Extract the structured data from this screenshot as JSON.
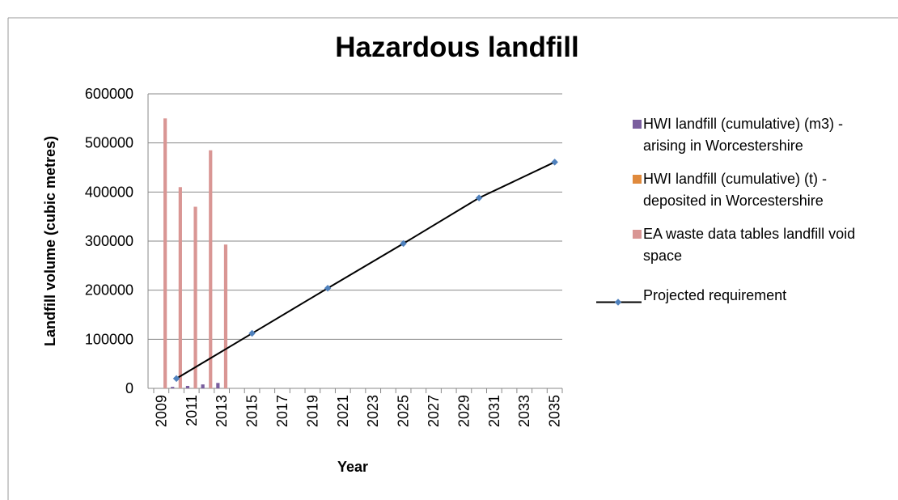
{
  "chart_data": {
    "type": "combo",
    "title": "Hazardous landfill",
    "y_label": "Landfill volume (cubic metres)",
    "x_label": "Year",
    "categories": [
      "2009",
      null,
      "2011",
      null,
      "2013",
      null,
      "2015",
      null,
      "2017",
      null,
      "2019",
      null,
      "2021",
      null,
      "2023",
      null,
      "2025",
      null,
      "2027",
      null,
      "2029",
      null,
      "2031",
      null,
      "2033",
      null,
      "2035"
    ],
    "series": [
      {
        "name": "HWI landfill (cumulative) (m3) - arising in Worcestershire",
        "type": "bar",
        "color": "#7a5e9e",
        "values": [
          null,
          3000,
          5000,
          8000,
          11000,
          null,
          null,
          null,
          null,
          null,
          null,
          null,
          null,
          null,
          null,
          null,
          null,
          null,
          null,
          null,
          null,
          null,
          null,
          null,
          null,
          null,
          null
        ]
      },
      {
        "name": "HWI landfill (cumulative) (t) - deposited in Worcestershire",
        "type": "bar",
        "color": "#e08a3c",
        "values": [
          null,
          null,
          null,
          null,
          null,
          null,
          null,
          null,
          null,
          null,
          null,
          null,
          null,
          null,
          null,
          null,
          null,
          null,
          null,
          null,
          null,
          null,
          null,
          null,
          null,
          null,
          null
        ]
      },
      {
        "name": "EA waste data tables landfill void space",
        "type": "bar",
        "color": "#d99694",
        "values": [
          550000,
          410000,
          370000,
          485000,
          293000,
          null,
          null,
          null,
          null,
          null,
          null,
          null,
          null,
          null,
          null,
          null,
          null,
          null,
          null,
          null,
          null,
          null,
          null,
          null,
          null,
          null,
          null
        ]
      },
      {
        "name": "Projected requirement",
        "type": "line",
        "color": "#000000",
        "marker_color": "#4f81bd",
        "x": [
          2010,
          2015,
          2020,
          2025,
          2030,
          2035
        ],
        "values": [
          20000,
          112000,
          204000,
          295000,
          388000,
          461000
        ]
      }
    ],
    "ylim": [
      0,
      600000
    ],
    "yticks": [
      0,
      100000,
      200000,
      300000,
      400000,
      500000,
      600000
    ],
    "grid": true,
    "legend": "right"
  }
}
